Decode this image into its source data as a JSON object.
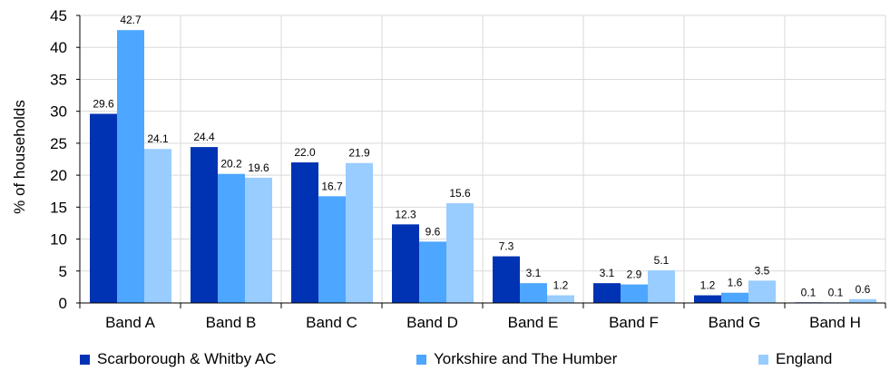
{
  "chart_data": {
    "type": "bar",
    "title": "",
    "xlabel": "",
    "ylabel": "% of households",
    "ylim": [
      0,
      45
    ],
    "yticks": [
      0,
      5,
      10,
      15,
      20,
      25,
      30,
      35,
      40,
      45
    ],
    "grid": "horizontal",
    "legend_position": "bottom",
    "categories": [
      "Band A",
      "Band B",
      "Band C",
      "Band D",
      "Band E",
      "Band F",
      "Band G",
      "Band H"
    ],
    "series": [
      {
        "name": "Scarborough & Whitby AC",
        "color": "#0033b3",
        "values": [
          29.6,
          24.4,
          22.0,
          12.3,
          7.3,
          3.1,
          1.2,
          0.1
        ],
        "labels": [
          "29.6",
          "24.4",
          "22.0",
          "12.3",
          "7.3",
          "3.1",
          "1.2",
          "0.1"
        ]
      },
      {
        "name": "Yorkshire and The Humber",
        "color": "#4da6ff",
        "values": [
          42.7,
          20.2,
          16.7,
          9.6,
          3.1,
          2.9,
          1.6,
          0.1
        ],
        "labels": [
          "42.7",
          "20.2",
          "16.7",
          "9.6",
          "3.1",
          "2.9",
          "1.6",
          "0.1"
        ]
      },
      {
        "name": "England",
        "color": "#99ccff",
        "values": [
          24.1,
          19.6,
          21.9,
          15.6,
          1.2,
          5.1,
          3.5,
          0.6
        ],
        "labels": [
          "24.1",
          "19.6",
          "21.9",
          "15.6",
          "1.2",
          "5.1",
          "3.5",
          "0.6"
        ]
      }
    ]
  }
}
